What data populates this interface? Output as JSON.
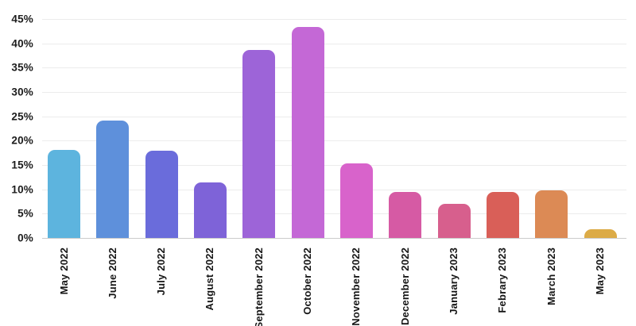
{
  "chart_data": {
    "type": "bar",
    "title": "",
    "xlabel": "",
    "ylabel": "",
    "categories": [
      "May 2022",
      "June 2022",
      "July 2022",
      "August 2022",
      "September 2022",
      "October 2022",
      "November 2022",
      "December 2022",
      "January 2023",
      "Febrary 2023",
      "March 2023",
      "May 2023"
    ],
    "values": [
      18.1,
      24.2,
      17.9,
      11.4,
      38.6,
      43.4,
      15.4,
      9.5,
      7.0,
      9.5,
      9.8,
      1.8
    ],
    "bar_colors": [
      "#5db4de",
      "#5e90db",
      "#6a6cdb",
      "#7e63d8",
      "#9d64d8",
      "#c468d6",
      "#d863cb",
      "#d65aa4",
      "#d75f8d",
      "#d95f58",
      "#dc8a55",
      "#dcab47"
    ],
    "ylim": [
      0,
      45
    ],
    "yticks": [
      0,
      5,
      10,
      15,
      20,
      25,
      30,
      35,
      40,
      45
    ],
    "ytick_labels": [
      "0%",
      "5%",
      "10%",
      "15%",
      "20%",
      "25%",
      "30%",
      "35%",
      "40%",
      "45%"
    ],
    "grid": true,
    "legend": false,
    "colors": {
      "gridline": "#ececec",
      "baseline": "#cccccc",
      "tick_label": "#1c1c1c",
      "background": "#ffffff"
    }
  }
}
